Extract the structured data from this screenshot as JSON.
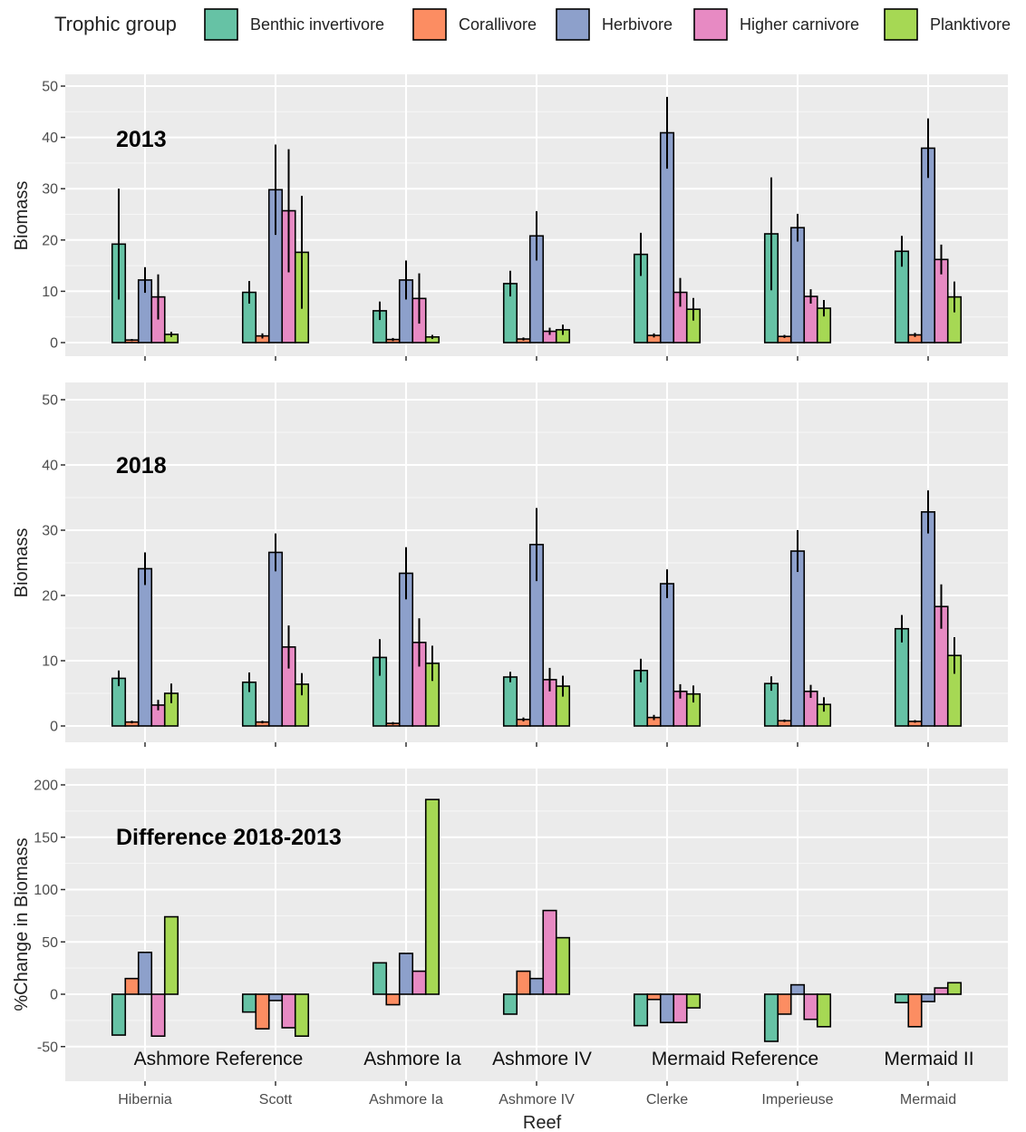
{
  "legend": {
    "title": "Trophic group",
    "items": [
      {
        "name": "Benthic invertivore",
        "color": "#66c2a5"
      },
      {
        "name": "Corallivore",
        "color": "#fc8d62"
      },
      {
        "name": "Herbivore",
        "color": "#8da0cb"
      },
      {
        "name": "Higher carnivore",
        "color": "#e78ac3"
      },
      {
        "name": "Planktivore",
        "color": "#a6d854"
      }
    ]
  },
  "x_axis_title": "Reef",
  "reefs": [
    "Hibernia",
    "Scott",
    "Ashmore Ia",
    "Ashmore IV",
    "Clerke",
    "Imperieuse",
    "Mermaid"
  ],
  "group_labels": [
    "Ashmore Reference",
    "Ashmore Ia",
    "Ashmore IV",
    "Mermaid Reference",
    "Mermaid II"
  ],
  "chart_data": [
    {
      "type": "bar",
      "panel_label": "2013",
      "ylabel": "Biomass",
      "ylim": [
        0,
        50
      ],
      "yticks": [
        0,
        10,
        20,
        30,
        40,
        50
      ],
      "categories": [
        "Hibernia",
        "Scott",
        "Ashmore Ia",
        "Ashmore IV",
        "Clerke",
        "Imperieuse",
        "Mermaid"
      ],
      "series": [
        {
          "name": "Benthic invertivore",
          "values": [
            19.2,
            9.8,
            6.2,
            11.5,
            17.2,
            21.2,
            17.8
          ],
          "errors": [
            10.8,
            2.2,
            1.8,
            2.5,
            4.2,
            11.0,
            3.0
          ]
        },
        {
          "name": "Corallivore",
          "values": [
            0.5,
            1.3,
            0.6,
            0.7,
            1.4,
            1.2,
            1.5
          ],
          "errors": [
            0.2,
            0.5,
            0.3,
            0.3,
            0.4,
            0.3,
            0.4
          ]
        },
        {
          "name": "Herbivore",
          "values": [
            12.2,
            29.8,
            12.2,
            20.8,
            40.9,
            22.4,
            37.9
          ],
          "errors": [
            2.5,
            8.8,
            3.8,
            4.8,
            7.0,
            2.7,
            5.8
          ]
        },
        {
          "name": "Higher carnivore",
          "values": [
            8.9,
            25.7,
            8.6,
            2.2,
            9.8,
            9.0,
            16.2
          ],
          "errors": [
            4.4,
            12.0,
            4.9,
            0.7,
            2.8,
            1.4,
            2.9
          ]
        },
        {
          "name": "Planktivore",
          "values": [
            1.6,
            17.6,
            1.1,
            2.5,
            6.5,
            6.7,
            8.9
          ],
          "errors": [
            0.5,
            11.0,
            0.4,
            1.0,
            2.2,
            1.6,
            3.0
          ]
        }
      ]
    },
    {
      "type": "bar",
      "panel_label": "2018",
      "ylabel": "Biomass",
      "ylim": [
        0,
        50
      ],
      "yticks": [
        0,
        10,
        20,
        30,
        40,
        50
      ],
      "categories": [
        "Hibernia",
        "Scott",
        "Ashmore Ia",
        "Ashmore IV",
        "Clerke",
        "Imperieuse",
        "Mermaid"
      ],
      "series": [
        {
          "name": "Benthic invertivore",
          "values": [
            7.3,
            6.7,
            10.5,
            7.5,
            8.5,
            6.5,
            14.9
          ],
          "errors": [
            1.2,
            1.5,
            2.8,
            0.8,
            1.8,
            1.1,
            2.1
          ]
        },
        {
          "name": "Corallivore",
          "values": [
            0.6,
            0.6,
            0.4,
            1.0,
            1.3,
            0.8,
            0.7
          ],
          "errors": [
            0.2,
            0.2,
            0.2,
            0.3,
            0.4,
            0.2,
            0.2
          ]
        },
        {
          "name": "Herbivore",
          "values": [
            24.1,
            26.6,
            23.4,
            27.8,
            21.8,
            26.8,
            32.8
          ],
          "errors": [
            2.5,
            2.9,
            4.0,
            5.6,
            2.2,
            3.2,
            3.3
          ]
        },
        {
          "name": "Higher carnivore",
          "values": [
            3.2,
            12.1,
            12.8,
            7.1,
            5.3,
            5.3,
            18.3
          ],
          "errors": [
            0.8,
            3.3,
            3.7,
            1.8,
            1.1,
            1.0,
            3.4
          ]
        },
        {
          "name": "Planktivore",
          "values": [
            5.0,
            6.4,
            9.6,
            6.1,
            4.9,
            3.3,
            10.8
          ],
          "errors": [
            1.5,
            1.7,
            2.7,
            1.6,
            1.3,
            1.1,
            2.8
          ]
        }
      ]
    },
    {
      "type": "bar",
      "panel_label": "Difference 2018-2013",
      "ylabel": "%Change in Biomass",
      "ylim": [
        -65,
        205
      ],
      "yticks": [
        -50,
        0,
        50,
        100,
        150,
        200
      ],
      "categories": [
        "Hibernia",
        "Scott",
        "Ashmore Ia",
        "Ashmore IV",
        "Clerke",
        "Imperieuse",
        "Mermaid"
      ],
      "series": [
        {
          "name": "Benthic invertivore",
          "values": [
            -39,
            -17,
            30,
            -19,
            -30,
            -45,
            -8
          ]
        },
        {
          "name": "Corallivore",
          "values": [
            15,
            -33,
            -10,
            22,
            -5,
            -19,
            -31
          ]
        },
        {
          "name": "Herbivore",
          "values": [
            40,
            -6,
            39,
            15,
            -27,
            9,
            -7
          ]
        },
        {
          "name": "Higher carnivore",
          "values": [
            -40,
            -32,
            22,
            80,
            -27,
            -24,
            6
          ]
        },
        {
          "name": "Planktivore",
          "values": [
            74,
            -40,
            186,
            54,
            -13,
            -31,
            11
          ]
        }
      ]
    }
  ]
}
